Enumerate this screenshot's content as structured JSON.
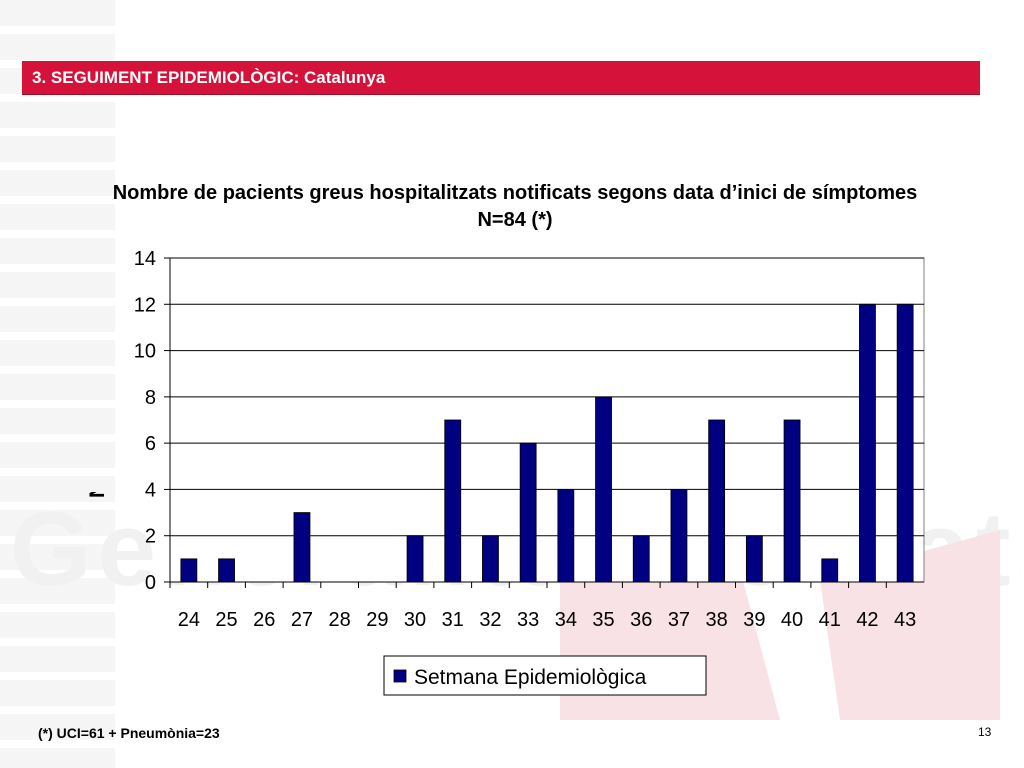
{
  "header": {
    "title": "3. SEGUIMENT EPIDEMIOLÒGIC: Catalunya"
  },
  "footnote": "(*) UCI=61 + Pneumònia=23",
  "page_number": "13",
  "colors": {
    "header_bar": "#d4123a",
    "bar": "#000080"
  },
  "chart_data": {
    "type": "bar",
    "title": "Nombre de pacients greus hospitalitzats notificats segons data d’inici de símptomes N=84 (*)",
    "xlabel": "",
    "ylabel": "Nombre de cas",
    "categories": [
      "24",
      "25",
      "26",
      "27",
      "28",
      "29",
      "30",
      "31",
      "32",
      "33",
      "34",
      "35",
      "36",
      "37",
      "38",
      "39",
      "40",
      "41",
      "42",
      "43"
    ],
    "series": [
      {
        "name": "Setmana Epidemiològica",
        "values": [
          1,
          1,
          0,
          3,
          0,
          0,
          2,
          7,
          2,
          6,
          4,
          8,
          2,
          4,
          7,
          2,
          7,
          1,
          12,
          12
        ]
      }
    ],
    "ylim": [
      0,
      14
    ],
    "yticks": [
      "0",
      "2",
      "4",
      "6",
      "8",
      "10",
      "12",
      "14"
    ],
    "grid": true,
    "legend": "bottom"
  }
}
